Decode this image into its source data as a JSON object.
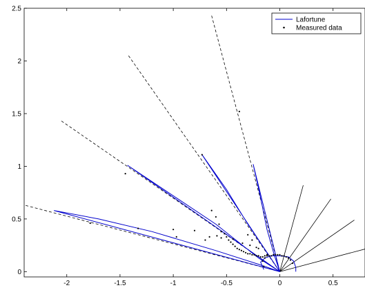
{
  "chart_data": {
    "type": "line",
    "title": "",
    "xlabel": "",
    "ylabel": "",
    "xlim": [
      -2.4,
      0.8
    ],
    "ylim": [
      -0.05,
      2.5
    ],
    "x_ticks": [
      -2,
      -1.5,
      -1,
      -0.5,
      0,
      0.5
    ],
    "x_tick_labels": [
      "-2",
      "-1.5",
      "-1",
      "-0.5",
      "0",
      "0.5"
    ],
    "y_ticks": [
      0,
      0.5,
      1,
      1.5,
      2,
      2.5
    ],
    "y_tick_labels": [
      "0",
      "0.5",
      "1",
      "1.5",
      "2",
      "2.5"
    ],
    "grid": false,
    "legend_position": "top-right",
    "legend": [
      {
        "label": "Lafortune",
        "style": "line",
        "color": "#0000cc"
      },
      {
        "label": "Measured data",
        "style": "marker",
        "color": "#000000"
      }
    ],
    "series": [
      {
        "name": "Lafortune",
        "color": "#0000cc",
        "lobes": [
          [
            [
              0,
              0
            ],
            [
              -2.12,
              0.58
            ],
            [
              -1.7,
              0.5
            ],
            [
              -1.2,
              0.38
            ],
            [
              -0.6,
              0.2
            ],
            [
              -0.2,
              0.07
            ],
            [
              0,
              0
            ]
          ],
          [
            [
              0,
              0
            ],
            [
              -1.43,
              1.01
            ],
            [
              -1.0,
              0.72
            ],
            [
              -0.6,
              0.45
            ],
            [
              -0.2,
              0.13
            ],
            [
              0,
              0
            ]
          ],
          [
            [
              0,
              0
            ],
            [
              -0.73,
              1.11
            ],
            [
              -0.5,
              0.78
            ],
            [
              -0.3,
              0.45
            ],
            [
              -0.12,
              0.18
            ],
            [
              0,
              0
            ]
          ],
          [
            [
              0,
              0
            ],
            [
              -0.25,
              1.02
            ],
            [
              -0.18,
              0.7
            ],
            [
              -0.12,
              0.4
            ],
            [
              -0.05,
              0.15
            ],
            [
              0,
              0
            ]
          ],
          [
            [
              -0.15,
              0.02
            ],
            [
              -0.18,
              0.09
            ],
            [
              -0.14,
              0.13
            ],
            [
              -0.08,
              0.15
            ],
            [
              0,
              0.15
            ],
            [
              0.08,
              0.14
            ],
            [
              0.13,
              0.1
            ],
            [
              0.15,
              0.04
            ],
            [
              0.15,
              0.0
            ]
          ]
        ]
      },
      {
        "name": "Measured data",
        "color": "#000000",
        "x": [
          -2.43,
          -1.33,
          -1.0,
          -0.97,
          -0.73,
          -0.7,
          -0.64,
          -0.6,
          -0.57,
          -0.55,
          -0.52,
          -0.5,
          -0.48,
          -0.46,
          -0.44,
          -0.42,
          -0.4,
          -0.38,
          -0.36,
          -0.34,
          -0.32,
          -0.3,
          -0.28,
          -0.26,
          -0.24,
          -0.22,
          -0.2,
          -0.18,
          -0.16,
          -0.14,
          -0.12,
          -0.1,
          -0.08,
          -0.06,
          -0.04,
          -0.02,
          0.0,
          0.02,
          0.04,
          0.06,
          0.08,
          0.1,
          0.12,
          -0.15,
          -0.16,
          -0.14,
          -0.12,
          -0.38,
          -0.55,
          -0.59,
          -1.45,
          -1.78,
          -0.8,
          -0.66,
          -0.44,
          -0.35,
          -0.28,
          -0.22,
          -0.2,
          -0.3,
          -0.26
        ],
        "y": [
          0.72,
          0.41,
          0.4,
          0.33,
          1.11,
          0.3,
          0.58,
          0.52,
          0.45,
          0.38,
          0.36,
          0.33,
          0.3,
          0.28,
          0.26,
          0.24,
          0.22,
          0.21,
          0.2,
          0.19,
          0.18,
          0.17,
          0.17,
          0.16,
          0.16,
          0.15,
          0.15,
          0.14,
          0.14,
          0.15,
          0.15,
          0.15,
          0.15,
          0.16,
          0.16,
          0.16,
          0.16,
          0.15,
          0.15,
          0.14,
          0.13,
          0.11,
          0.08,
          0.05,
          0.1,
          0.13,
          0.16,
          1.52,
          0.32,
          0.34,
          0.93,
          0.46,
          0.39,
          0.33,
          0.31,
          0.27,
          0.25,
          0.23,
          0.22,
          0.35,
          0.3
        ]
      }
    ],
    "reference_directions": [
      {
        "style": "dashed",
        "color": "#000000",
        "points": [
          [
            -2.43,
            0.64
          ],
          [
            0,
            0
          ]
        ]
      },
      {
        "style": "dashed",
        "color": "#000000",
        "points": [
          [
            -2.05,
            1.43
          ],
          [
            0,
            0
          ]
        ]
      },
      {
        "style": "dashed",
        "color": "#000000",
        "points": [
          [
            -1.42,
            2.05
          ],
          [
            0,
            0
          ]
        ]
      },
      {
        "style": "dashed",
        "color": "#000000",
        "points": [
          [
            -0.64,
            2.43
          ],
          [
            0,
            0
          ]
        ]
      },
      {
        "style": "solid",
        "color": "#000000",
        "points": [
          [
            0,
            0
          ],
          [
            0.22,
            0.82
          ]
        ]
      },
      {
        "style": "solid",
        "color": "#000000",
        "points": [
          [
            0,
            0
          ],
          [
            0.48,
            0.69
          ]
        ]
      },
      {
        "style": "solid",
        "color": "#000000",
        "points": [
          [
            0,
            0
          ],
          [
            0.7,
            0.49
          ]
        ]
      },
      {
        "style": "solid",
        "color": "#000000",
        "points": [
          [
            0,
            0
          ],
          [
            0.82,
            0.22
          ]
        ]
      }
    ]
  }
}
